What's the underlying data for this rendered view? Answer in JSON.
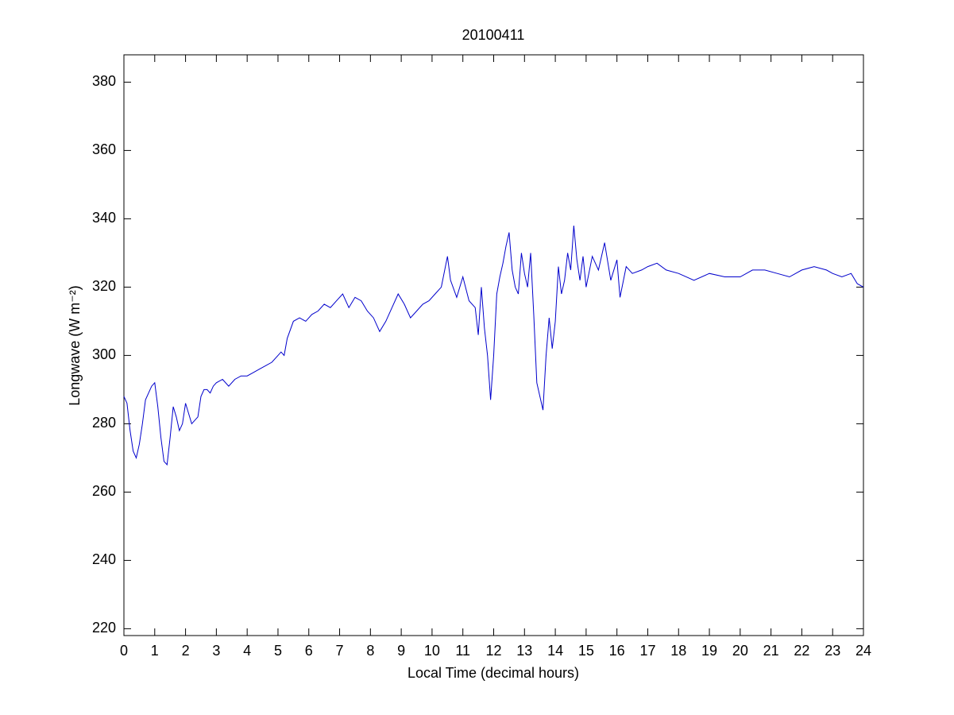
{
  "chart_data": {
    "type": "line",
    "title": "20100411",
    "xlabel": "Local Time (decimal hours)",
    "ylabel": "Longwave (W m⁻²)",
    "xlim": [
      0,
      24
    ],
    "ylim": [
      218,
      388
    ],
    "xticks": [
      0,
      1,
      2,
      3,
      4,
      5,
      6,
      7,
      8,
      9,
      10,
      11,
      12,
      13,
      14,
      15,
      16,
      17,
      18,
      19,
      20,
      21,
      22,
      23,
      24
    ],
    "yticks": [
      220,
      240,
      260,
      280,
      300,
      320,
      340,
      360,
      380
    ],
    "grid": false,
    "series": [
      {
        "color": "#0000cc",
        "x": [
          0,
          0.1,
          0.2,
          0.3,
          0.4,
          0.5,
          0.6,
          0.7,
          0.8,
          0.9,
          1.0,
          1.1,
          1.2,
          1.3,
          1.4,
          1.5,
          1.6,
          1.7,
          1.8,
          1.9,
          2.0,
          2.1,
          2.2,
          2.3,
          2.4,
          2.5,
          2.6,
          2.7,
          2.8,
          2.9,
          3.0,
          3.2,
          3.4,
          3.6,
          3.8,
          4.0,
          4.2,
          4.4,
          4.6,
          4.8,
          5.0,
          5.1,
          5.2,
          5.3,
          5.5,
          5.7,
          5.9,
          6.1,
          6.3,
          6.5,
          6.7,
          6.9,
          7.1,
          7.3,
          7.5,
          7.7,
          7.9,
          8.1,
          8.3,
          8.5,
          8.7,
          8.9,
          9.1,
          9.3,
          9.5,
          9.7,
          9.9,
          10.1,
          10.3,
          10.5,
          10.6,
          10.8,
          11.0,
          11.2,
          11.4,
          11.5,
          11.6,
          11.7,
          11.8,
          11.9,
          12.0,
          12.1,
          12.2,
          12.3,
          12.4,
          12.5,
          12.6,
          12.7,
          12.8,
          12.9,
          13.0,
          13.1,
          13.2,
          13.3,
          13.4,
          13.5,
          13.6,
          13.7,
          13.8,
          13.9,
          14.0,
          14.1,
          14.2,
          14.3,
          14.4,
          14.5,
          14.6,
          14.7,
          14.8,
          14.9,
          15.0,
          15.2,
          15.4,
          15.6,
          15.8,
          16.0,
          16.1,
          16.3,
          16.5,
          16.8,
          17.0,
          17.3,
          17.6,
          18.0,
          18.5,
          19.0,
          19.5,
          20.0,
          20.4,
          20.8,
          21.2,
          21.6,
          22.0,
          22.4,
          22.8,
          23.0,
          23.3,
          23.6,
          23.8,
          24.0
        ],
        "values": [
          288,
          286,
          278,
          272,
          270,
          274,
          280,
          287,
          289,
          291,
          292,
          285,
          276,
          269,
          268,
          276,
          285,
          282,
          278,
          280,
          286,
          283,
          280,
          281,
          282,
          288,
          290,
          290,
          289,
          291,
          292,
          293,
          291,
          293,
          294,
          294,
          295,
          296,
          297,
          298,
          300,
          301,
          300,
          305,
          310,
          311,
          310,
          312,
          313,
          315,
          314,
          316,
          318,
          314,
          317,
          316,
          313,
          311,
          307,
          310,
          314,
          318,
          315,
          311,
          313,
          315,
          316,
          318,
          320,
          329,
          322,
          317,
          323,
          316,
          314,
          306,
          320,
          308,
          300,
          287,
          300,
          318,
          323,
          327,
          332,
          336,
          325,
          320,
          318,
          330,
          324,
          320,
          330,
          312,
          292,
          288,
          284,
          300,
          311,
          302,
          310,
          326,
          318,
          322,
          330,
          325,
          338,
          328,
          322,
          329,
          320,
          329,
          325,
          333,
          322,
          328,
          317,
          326,
          324,
          325,
          326,
          327,
          325,
          324,
          322,
          324,
          323,
          323,
          325,
          325,
          324,
          323,
          325,
          326,
          325,
          324,
          323,
          324,
          321,
          320
        ]
      }
    ]
  }
}
